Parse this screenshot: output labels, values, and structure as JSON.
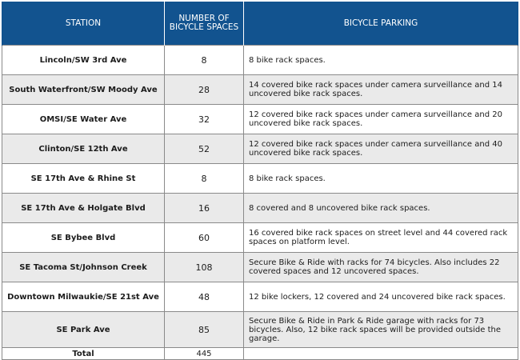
{
  "table": {
    "headers": [
      "STATION",
      "NUMBER OF BICYCLE SPACES",
      "BICYCLE PARKING"
    ],
    "rows": [
      {
        "station": "Lincoln/SW 3rd Ave",
        "spaces": "8",
        "parking": "8 bike rack spaces."
      },
      {
        "station": "South Waterfront/SW Moody Ave",
        "spaces": "28",
        "parking": "14 covered bike rack spaces under camera surveillance and 14 uncovered bike rack spaces."
      },
      {
        "station": "OMSI/SE Water Ave",
        "spaces": "32",
        "parking": "12 covered bike rack spaces under camera surveillance and 20 uncovered bike rack spaces."
      },
      {
        "station": "Clinton/SE 12th Ave",
        "spaces": "52",
        "parking": "12 covered bike rack spaces under camera surveillance and 40 uncovered bike rack spaces."
      },
      {
        "station": "SE 17th Ave & Rhine St",
        "spaces": "8",
        "parking": "8 bike rack spaces."
      },
      {
        "station": "SE 17th Ave & Holgate Blvd",
        "spaces": "16",
        "parking": "8 covered and 8 uncovered bike rack spaces."
      },
      {
        "station": "SE Bybee Blvd",
        "spaces": "60",
        "parking": "16 covered bike rack spaces on street level and 44 covered rack spaces on platform level."
      },
      {
        "station": "SE Tacoma St/Johnson Creek",
        "spaces": "108",
        "parking": "Secure Bike & Ride with racks for 74 bicycles. Also includes 22 covered spaces and 12 uncovered spaces."
      },
      {
        "station": "Downtown Milwaukie/SE 21st Ave",
        "spaces": "48",
        "parking": "12 bike lockers, 12 covered and 24 uncovered bike rack spaces."
      },
      {
        "station": "SE Park Ave",
        "spaces": "85",
        "parking": "Secure Bike & Ride in Park & Ride garage with racks for 73 bicycles. Also, 12 bike rack spaces will be provided outside the garage."
      }
    ],
    "total": {
      "label": "Total",
      "spaces": "445",
      "parking": ""
    }
  },
  "colors": {
    "header_bg": "#12538f",
    "alt_row_bg": "#eaeaea",
    "border": "#8a8a8a"
  }
}
